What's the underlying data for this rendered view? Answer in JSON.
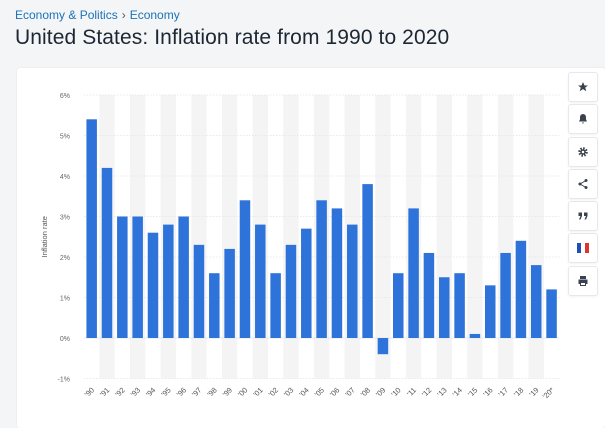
{
  "breadcrumb": {
    "item1": "Economy & Politics",
    "separator": "›",
    "item2": "Economy"
  },
  "page": {
    "title": "United States: Inflation rate from 1990 to 2020"
  },
  "toolbar": {
    "buttons": [
      {
        "name": "favorite-star-icon"
      },
      {
        "name": "notification-bell-icon"
      },
      {
        "name": "settings-gear-icon"
      },
      {
        "name": "share-icon"
      },
      {
        "name": "citation-quote-icon"
      },
      {
        "name": "language-flag-icon"
      },
      {
        "name": "print-icon"
      }
    ]
  },
  "colors": {
    "bar": "#2e73d9",
    "band": "#f4f4f4",
    "accent": "#1a73b8"
  },
  "chart_data": {
    "type": "bar",
    "ylabel": "Inflation rate",
    "ylim": [
      -1,
      6
    ],
    "y_ticks": [
      "6%",
      "5%",
      "4%",
      "3%",
      "2%",
      "1%",
      "0%",
      "-1%"
    ],
    "categories": [
      "'90",
      "'91",
      "'92",
      "'93",
      "'94",
      "'95",
      "'96",
      "'97",
      "'98",
      "'99",
      "'00",
      "'01",
      "'02",
      "'03",
      "'04",
      "'05",
      "'06",
      "'07",
      "'08",
      "'09",
      "'10",
      "'11",
      "'12",
      "'13",
      "'14",
      "'15",
      "'16",
      "'17",
      "'18",
      "'19",
      "'20*"
    ],
    "values": [
      5.4,
      4.2,
      3.0,
      3.0,
      2.6,
      2.8,
      3.0,
      2.3,
      1.6,
      2.2,
      3.4,
      2.8,
      1.6,
      2.3,
      2.7,
      3.4,
      3.2,
      2.8,
      3.8,
      -0.4,
      1.6,
      3.2,
      2.1,
      1.5,
      1.6,
      0.1,
      1.3,
      2.1,
      2.4,
      1.8,
      1.2
    ]
  }
}
